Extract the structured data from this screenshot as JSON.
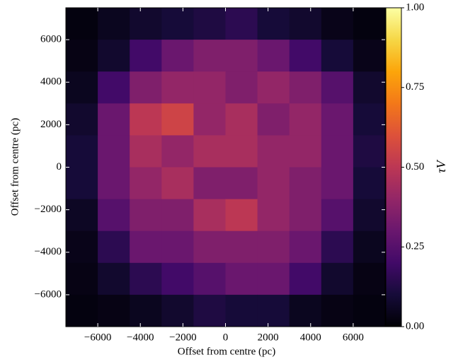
{
  "chart_data": {
    "type": "heatmap",
    "xlabel": "Offset from centre (pc)",
    "ylabel": "Offset from centre (pc)",
    "colorbar_label": "τV",
    "colormap": "inferno",
    "x": [
      -6750,
      -5250,
      -3750,
      -2250,
      -750,
      750,
      2250,
      3750,
      5250,
      6750
    ],
    "y": [
      6750,
      5250,
      3750,
      2250,
      750,
      -750,
      -2250,
      -3750,
      -5250,
      -6750
    ],
    "z": [
      [
        0.02,
        0.05,
        0.08,
        0.1,
        0.12,
        0.15,
        0.1,
        0.08,
        0.04,
        0.02
      ],
      [
        0.03,
        0.08,
        0.2,
        0.3,
        0.35,
        0.35,
        0.3,
        0.2,
        0.1,
        0.04
      ],
      [
        0.05,
        0.2,
        0.35,
        0.4,
        0.4,
        0.35,
        0.4,
        0.35,
        0.25,
        0.08
      ],
      [
        0.08,
        0.3,
        0.5,
        0.55,
        0.4,
        0.45,
        0.35,
        0.4,
        0.3,
        0.1
      ],
      [
        0.1,
        0.3,
        0.45,
        0.4,
        0.45,
        0.45,
        0.4,
        0.4,
        0.3,
        0.12
      ],
      [
        0.1,
        0.3,
        0.4,
        0.45,
        0.35,
        0.35,
        0.4,
        0.35,
        0.3,
        0.1
      ],
      [
        0.06,
        0.25,
        0.35,
        0.35,
        0.45,
        0.5,
        0.4,
        0.35,
        0.25,
        0.08
      ],
      [
        0.04,
        0.15,
        0.3,
        0.3,
        0.35,
        0.35,
        0.35,
        0.3,
        0.15,
        0.05
      ],
      [
        0.03,
        0.08,
        0.15,
        0.2,
        0.25,
        0.3,
        0.3,
        0.2,
        0.08,
        0.03
      ],
      [
        0.02,
        0.03,
        0.05,
        0.08,
        0.12,
        0.1,
        0.1,
        0.05,
        0.03,
        0.02
      ]
    ],
    "xlim": [
      -7500,
      7500
    ],
    "ylim": [
      -7500,
      7500
    ],
    "xticks": [
      {
        "value": -6000,
        "label": "−6000"
      },
      {
        "value": -4000,
        "label": "−4000"
      },
      {
        "value": -2000,
        "label": "−2000"
      },
      0,
      2000,
      4000,
      6000
    ],
    "yticks": [
      {
        "value": -6000,
        "label": "−6000"
      },
      {
        "value": -4000,
        "label": "−4000"
      },
      {
        "value": -2000,
        "label": "−2000"
      },
      0,
      2000,
      4000,
      6000
    ],
    "clim": [
      0,
      1
    ],
    "cticks": [
      {
        "value": 0,
        "label": "0.00"
      },
      {
        "value": 0.25,
        "label": "0.25"
      },
      {
        "value": 0.5,
        "label": "0.50"
      },
      {
        "value": 0.75,
        "label": "0.75"
      },
      {
        "value": 1,
        "label": "1.00"
      }
    ]
  }
}
